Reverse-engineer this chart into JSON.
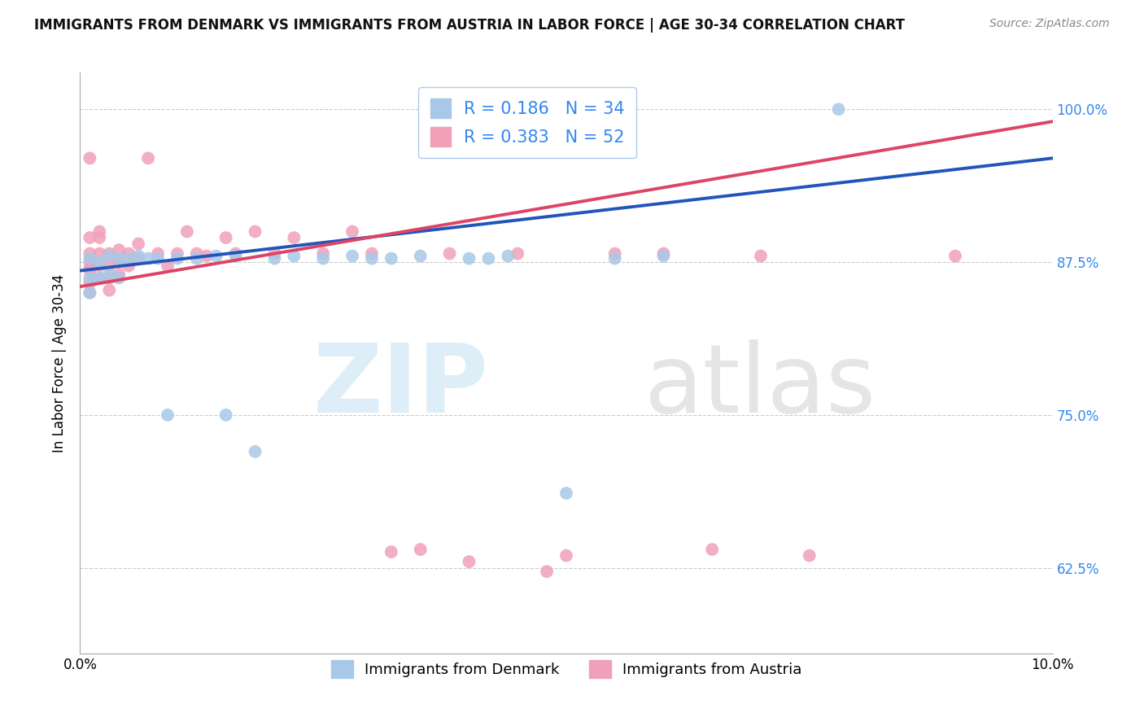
{
  "title": "IMMIGRANTS FROM DENMARK VS IMMIGRANTS FROM AUSTRIA IN LABOR FORCE | AGE 30-34 CORRELATION CHART",
  "source": "Source: ZipAtlas.com",
  "ylabel": "In Labor Force | Age 30-34",
  "xlim": [
    0.0,
    0.1
  ],
  "ylim": [
    0.555,
    1.03
  ],
  "ytick_values": [
    0.625,
    0.75,
    0.875,
    1.0
  ],
  "xtick_values": [
    0.0,
    0.01,
    0.02,
    0.03,
    0.04,
    0.05,
    0.06,
    0.07,
    0.08,
    0.09,
    0.1
  ],
  "denmark_R": 0.186,
  "denmark_N": 34,
  "austria_R": 0.383,
  "austria_N": 52,
  "denmark_color": "#a8c8e8",
  "austria_color": "#f0a0b8",
  "denmark_line_color": "#2255bb",
  "austria_line_color": "#dd4466",
  "denmark_x": [
    0.001,
    0.001,
    0.001,
    0.002,
    0.002,
    0.003,
    0.003,
    0.004,
    0.004,
    0.005,
    0.006,
    0.007,
    0.008,
    0.009,
    0.01,
    0.012,
    0.014,
    0.016,
    0.02,
    0.022,
    0.025,
    0.028,
    0.03,
    0.032,
    0.035,
    0.04,
    0.042,
    0.044,
    0.05,
    0.055,
    0.06,
    0.078,
    0.015,
    0.018
  ],
  "denmark_y": [
    0.878,
    0.862,
    0.85,
    0.875,
    0.862,
    0.88,
    0.865,
    0.878,
    0.862,
    0.878,
    0.88,
    0.878,
    0.878,
    0.75,
    0.878,
    0.878,
    0.88,
    0.88,
    0.878,
    0.88,
    0.878,
    0.88,
    0.878,
    0.878,
    0.88,
    0.878,
    0.878,
    0.88,
    0.686,
    0.878,
    0.88,
    1.0,
    0.75,
    0.72
  ],
  "austria_x": [
    0.001,
    0.001,
    0.001,
    0.001,
    0.001,
    0.001,
    0.001,
    0.001,
    0.002,
    0.002,
    0.002,
    0.002,
    0.002,
    0.003,
    0.003,
    0.003,
    0.003,
    0.004,
    0.004,
    0.004,
    0.005,
    0.005,
    0.006,
    0.006,
    0.007,
    0.008,
    0.009,
    0.01,
    0.011,
    0.012,
    0.013,
    0.015,
    0.016,
    0.018,
    0.02,
    0.022,
    0.025,
    0.028,
    0.03,
    0.032,
    0.035,
    0.038,
    0.04,
    0.045,
    0.048,
    0.05,
    0.055,
    0.06,
    0.065,
    0.07,
    0.075,
    0.09
  ],
  "austria_y": [
    0.882,
    0.895,
    0.875,
    0.868,
    0.858,
    0.85,
    0.96,
    0.87,
    0.9,
    0.882,
    0.872,
    0.862,
    0.895,
    0.882,
    0.872,
    0.862,
    0.852,
    0.885,
    0.875,
    0.865,
    0.882,
    0.872,
    0.89,
    0.878,
    0.96,
    0.882,
    0.872,
    0.882,
    0.9,
    0.882,
    0.88,
    0.895,
    0.882,
    0.9,
    0.882,
    0.895,
    0.882,
    0.9,
    0.882,
    0.638,
    0.64,
    0.882,
    0.63,
    0.882,
    0.622,
    0.635,
    0.882,
    0.882,
    0.64,
    0.88,
    0.635,
    0.88
  ]
}
